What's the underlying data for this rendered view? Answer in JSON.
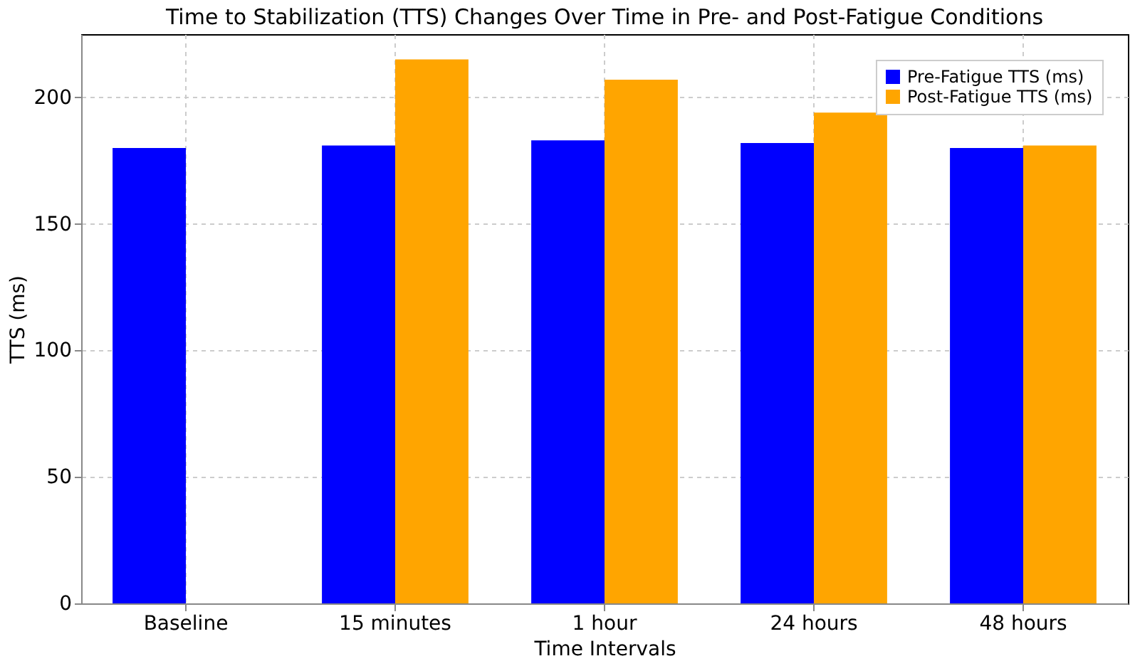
{
  "chart_data": {
    "type": "bar",
    "title": "Time to Stabilization (TTS) Changes Over Time in Pre- and Post-Fatigue Conditions",
    "xlabel": "Time Intervals",
    "ylabel": "TTS (ms)",
    "categories": [
      "Baseline",
      "15 minutes",
      "1 hour",
      "24 hours",
      "48 hours"
    ],
    "series": [
      {
        "name": "Pre-Fatigue TTS (ms)",
        "color": "#0000ff",
        "values": [
          180,
          181,
          183,
          182,
          180
        ]
      },
      {
        "name": "Post-Fatigue TTS (ms)",
        "color": "#ffa500",
        "values": [
          null,
          215,
          207,
          194,
          181
        ]
      }
    ],
    "ylim": [
      0,
      225
    ],
    "yticks": [
      0,
      50,
      100,
      150,
      200
    ],
    "grid": true,
    "legend": "top right"
  }
}
